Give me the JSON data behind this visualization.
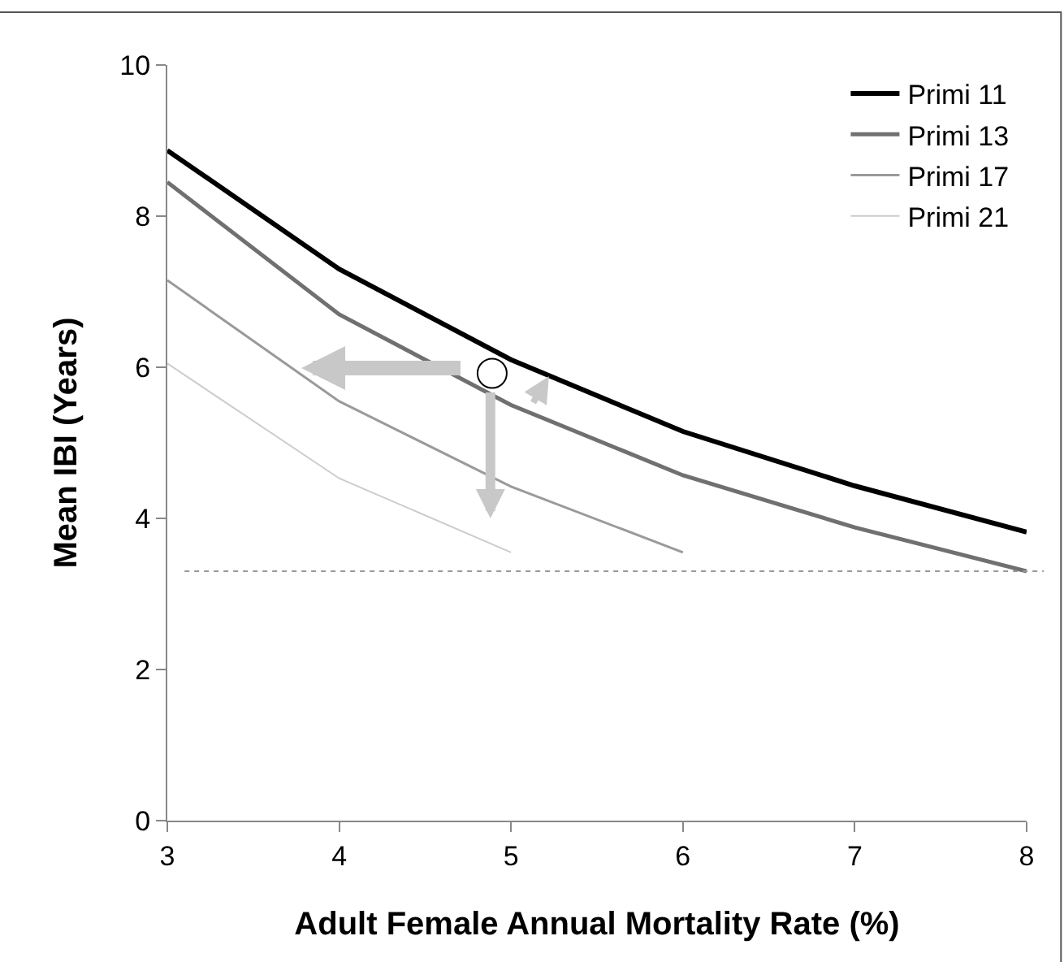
{
  "chart_data": {
    "type": "line",
    "xlabel": "Adult Female Annual Mortality Rate (%)",
    "ylabel": "Mean IBI (Years)",
    "series": [
      {
        "name": "Primi 11",
        "color": "#000000",
        "x": [
          3,
          4,
          5,
          6,
          7,
          8
        ],
        "values": [
          8.87,
          7.3,
          6.1,
          5.15,
          4.43,
          3.82
        ]
      },
      {
        "name": "Primi 13",
        "color": "#707070",
        "x": [
          3,
          4,
          5,
          6,
          7,
          8
        ],
        "values": [
          8.45,
          6.7,
          5.5,
          4.57,
          3.88,
          3.3
        ]
      },
      {
        "name": "Primi 17",
        "color": "#9a9a9a",
        "x": [
          3,
          4,
          5,
          6
        ],
        "values": [
          7.15,
          5.55,
          4.42,
          3.55
        ]
      },
      {
        "name": "Primi 21",
        "color": "#cccccc",
        "x": [
          3,
          4,
          5
        ],
        "values": [
          6.05,
          4.53,
          3.55
        ]
      },
      {
        "type": "scatter",
        "marker": "circle",
        "color": "#000000",
        "x": [
          4.89
        ],
        "values": [
          5.92
        ]
      }
    ],
    "ref_lines": [
      {
        "axis": "y",
        "value": 3.3,
        "label": null,
        "color": "#999999",
        "line_style": "dotted"
      }
    ],
    "xlim": [
      3,
      8
    ],
    "xticks": [
      3,
      4,
      5,
      6,
      7,
      8
    ],
    "ylim": [
      0,
      10
    ],
    "yticks": [
      0,
      2,
      4,
      6,
      8,
      10
    ],
    "grid": false,
    "legend": "top right",
    "marker": "none",
    "line_style": "solid"
  }
}
